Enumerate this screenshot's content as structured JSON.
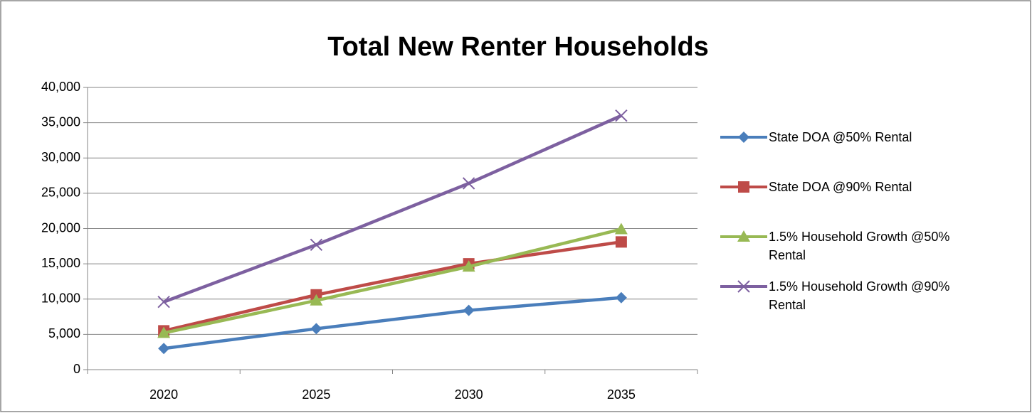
{
  "chart_data": {
    "type": "line",
    "title": "Total New Renter Households",
    "categories": [
      "2020",
      "2025",
      "2030",
      "2035"
    ],
    "series": [
      {
        "name": "State DOA @50% Rental",
        "color": "#4a7ebb",
        "marker": "diamond",
        "values": [
          3000,
          5800,
          8400,
          10200
        ]
      },
      {
        "name": "State DOA @90% Rental",
        "color": "#be4b48",
        "marker": "square",
        "values": [
          5500,
          10600,
          15000,
          18100
        ]
      },
      {
        "name": "1.5% Household Growth @50% Rental",
        "color": "#98b954",
        "marker": "triangle",
        "values": [
          5200,
          9800,
          14600,
          19900
        ]
      },
      {
        "name": "1.5% Household Growth @90% Rental",
        "color": "#7d60a0",
        "marker": "x",
        "values": [
          9600,
          17700,
          26400,
          36000
        ]
      }
    ],
    "ylim": [
      0,
      40000
    ],
    "yticks": [
      0,
      {
        "value": 5000,
        "label": "5,000"
      },
      {
        "value": 10000,
        "label": "10,000"
      },
      {
        "value": 15000,
        "label": "15,000"
      },
      {
        "value": 20000,
        "label": "20,000"
      },
      {
        "value": 25000,
        "label": "25,000"
      },
      {
        "value": 30000,
        "label": "30,000"
      },
      {
        "value": 35000,
        "label": "35,000"
      },
      {
        "value": 40000,
        "label": "40,000"
      }
    ],
    "grid": true,
    "legend": "right"
  }
}
